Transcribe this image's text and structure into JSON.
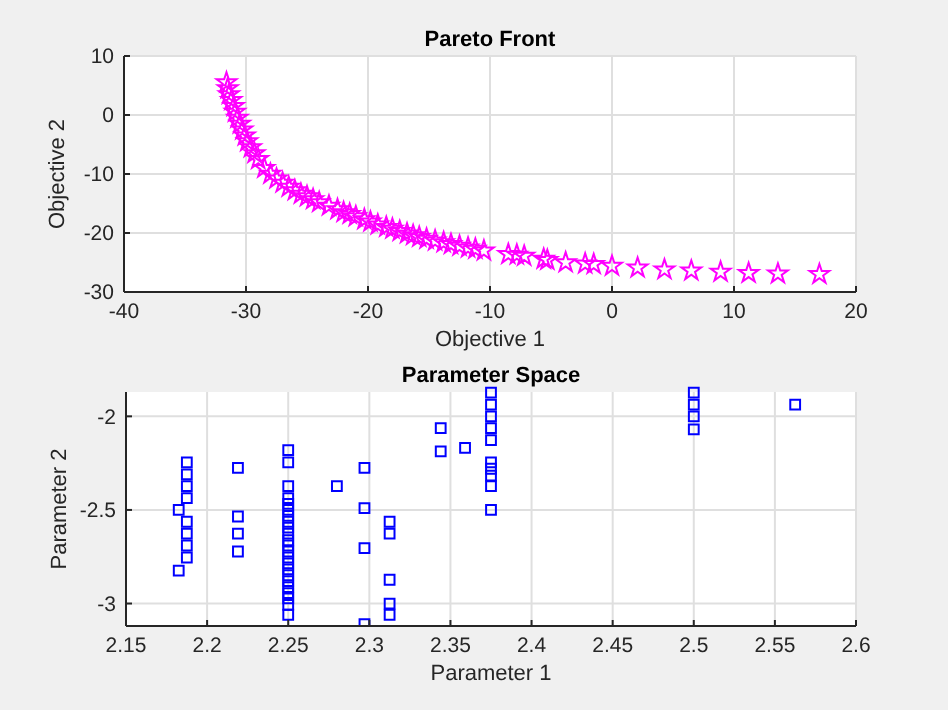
{
  "chart_data": [
    {
      "type": "scatter",
      "title": "Pareto Front",
      "xlabel": "Objective 1",
      "ylabel": "Objective 2",
      "xlim": [
        -40,
        20
      ],
      "ylim": [
        -30,
        10
      ],
      "xticks": [
        -40,
        -30,
        -20,
        -10,
        0,
        10,
        20
      ],
      "yticks": [
        -30,
        -20,
        -10,
        0,
        10
      ],
      "grid": true,
      "marker": "star",
      "series": [
        {
          "color": "#ff00ff",
          "x": [
            -31.6,
            -31.5,
            -31.4,
            -31.2,
            -31,
            -30.9,
            -30.7,
            -30.5,
            -30.3,
            -30.1,
            -29.9,
            -29.6,
            -29.3,
            -29,
            -28.5,
            -28,
            -27.5,
            -27,
            -26.5,
            -26,
            -25.5,
            -25,
            -24.5,
            -24,
            -23.2,
            -22.5,
            -22,
            -21.5,
            -21,
            -20.3,
            -19.8,
            -19.2,
            -18.5,
            -18,
            -17.4,
            -16.8,
            -16.3,
            -15.8,
            -15.2,
            -14.5,
            -13.8,
            -13.2,
            -12.5,
            -11.8,
            -11.2,
            -10.5,
            -8.5,
            -7.8,
            -7.2,
            -5.6,
            -5.3,
            -3.8,
            -2.2,
            -1.5,
            0,
            2.1,
            4.3,
            6.5,
            8.9,
            11.2,
            13.6,
            17
          ],
          "values": [
            5.5,
            4.5,
            3.5,
            2.5,
            1.5,
            0.5,
            -0.5,
            -1.5,
            -2.5,
            -3.5,
            -4.5,
            -5.5,
            -6.5,
            -7.5,
            -9,
            -10,
            -10.8,
            -11.5,
            -12.2,
            -12.8,
            -13.4,
            -13.8,
            -14.3,
            -14.8,
            -15.4,
            -16,
            -16.5,
            -16.8,
            -17.2,
            -17.7,
            -18.1,
            -18.6,
            -19,
            -19.3,
            -19.7,
            -20.1,
            -20.4,
            -20.7,
            -21,
            -21.3,
            -21.6,
            -21.9,
            -22.2,
            -22.5,
            -22.7,
            -23,
            -23.6,
            -23.7,
            -23.9,
            -24.4,
            -24.6,
            -25,
            -25.2,
            -25.3,
            -25.6,
            -25.9,
            -26.2,
            -26.4,
            -26.6,
            -26.8,
            -26.9,
            -27
          ]
        }
      ]
    },
    {
      "type": "scatter",
      "title": "Parameter Space",
      "xlabel": "Parameter 1",
      "ylabel": "Parameter 2",
      "xlim": [
        2.15,
        2.6
      ],
      "ylim": [
        -3.12,
        -1.87
      ],
      "xticks": [
        2.15,
        2.2,
        2.25,
        2.3,
        2.35,
        2.4,
        2.45,
        2.5,
        2.55,
        2.6
      ],
      "yticks": [
        -3,
        -2.5,
        -2
      ],
      "grid": true,
      "marker": "square",
      "series": [
        {
          "color": "#0000ff",
          "x": [
            2.1875,
            2.1875,
            2.1875,
            2.1875,
            2.1875,
            2.1875,
            2.1875,
            2.1875,
            2.1825,
            2.1825,
            2.219,
            2.219,
            2.219,
            2.219,
            2.25,
            2.25,
            2.25,
            2.25,
            2.25,
            2.25,
            2.25,
            2.25,
            2.25,
            2.25,
            2.25,
            2.25,
            2.25,
            2.25,
            2.25,
            2.25,
            2.25,
            2.25,
            2.25,
            2.25,
            2.25,
            2.25,
            2.25,
            2.28,
            2.297,
            2.297,
            2.297,
            2.297,
            2.3125,
            2.3125,
            2.3125,
            2.3125,
            2.3125,
            2.344,
            2.344,
            2.359,
            2.375,
            2.375,
            2.375,
            2.375,
            2.375,
            2.375,
            2.375,
            2.375,
            2.375,
            2.375,
            2.5,
            2.5,
            2.5,
            2.5,
            2.5625
          ],
          "values": [
            -2.246,
            -2.31,
            -2.373,
            -2.437,
            -2.563,
            -2.627,
            -2.69,
            -2.754,
            -2.5,
            -2.824,
            -2.275,
            -2.535,
            -2.627,
            -2.722,
            -2.18,
            -2.246,
            -2.373,
            -2.437,
            -2.468,
            -2.5,
            -2.532,
            -2.563,
            -2.595,
            -2.627,
            -2.662,
            -2.69,
            -2.722,
            -2.754,
            -2.785,
            -2.817,
            -2.849,
            -2.88,
            -2.912,
            -2.944,
            -2.972,
            -3.007,
            -3.06,
            -2.373,
            -2.275,
            -2.49,
            -2.704,
            -3.11,
            -2.563,
            -2.627,
            -2.873,
            -3,
            -3.06,
            -2.063,
            -2.187,
            -2.169,
            -1.873,
            -1.937,
            -2,
            -2.063,
            -2.127,
            -2.246,
            -2.28,
            -2.317,
            -2.373,
            -2.5,
            -1.873,
            -1.937,
            -2,
            -2.07,
            -1.937
          ]
        }
      ]
    }
  ]
}
